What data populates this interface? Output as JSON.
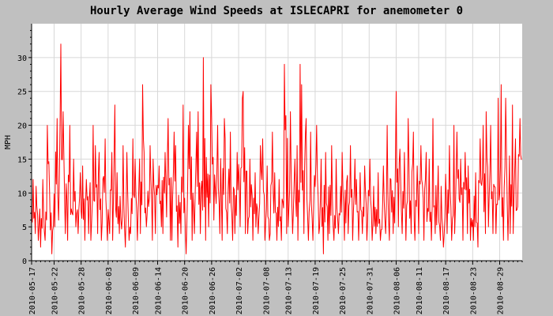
{
  "chart_data": {
    "type": "line",
    "title": "Hourly Average Wind Speeds at ISLECAPRI for anemometer 0",
    "xlabel": "",
    "ylabel": "MPH",
    "ylim": [
      0,
      35
    ],
    "yticks": [
      0,
      5,
      10,
      15,
      20,
      25,
      30
    ],
    "xlim": [
      "2010-05-17",
      "2010-09-03"
    ],
    "xticks": [
      "2010-05-17",
      "2010-05-22",
      "2010-05-28",
      "2010-06-03",
      "2010-06-09",
      "2010-06-14",
      "2010-06-20",
      "2010-06-26",
      "2010-07-02",
      "2010-07-08",
      "2010-07-13",
      "2010-07-19",
      "2010-07-25",
      "2010-07-31",
      "2010-08-06",
      "2010-08-11",
      "2010-08-17",
      "2010-08-23",
      "2010-08-29"
    ],
    "grid": true,
    "colors": {
      "line": "#ff0000",
      "background": "#c0c0c0",
      "plot": "#ffffff",
      "grid": "#d8d8d8"
    },
    "series": [
      {
        "name": "",
        "x": [
          "2010-05-17",
          "2010-05-18",
          "2010-05-19",
          "2010-05-20",
          "2010-05-21",
          "2010-05-22",
          "2010-05-23",
          "2010-05-24",
          "2010-05-25",
          "2010-05-26",
          "2010-05-27",
          "2010-05-28",
          "2010-05-29",
          "2010-05-30",
          "2010-05-31",
          "2010-06-01",
          "2010-06-02",
          "2010-06-03",
          "2010-06-04",
          "2010-06-05",
          "2010-06-06",
          "2010-06-07",
          "2010-06-08",
          "2010-06-09",
          "2010-06-10",
          "2010-06-11",
          "2010-06-12",
          "2010-06-13",
          "2010-06-14",
          "2010-06-15",
          "2010-06-16",
          "2010-06-17",
          "2010-06-18",
          "2010-06-19",
          "2010-06-20",
          "2010-06-21",
          "2010-06-22",
          "2010-06-23",
          "2010-06-24",
          "2010-06-25",
          "2010-06-26",
          "2010-06-27",
          "2010-06-28",
          "2010-06-29",
          "2010-06-30",
          "2010-07-01",
          "2010-07-02",
          "2010-07-03",
          "2010-07-04",
          "2010-07-05",
          "2010-07-06",
          "2010-07-07",
          "2010-07-08",
          "2010-07-09",
          "2010-07-10",
          "2010-07-11",
          "2010-07-12",
          "2010-07-13",
          "2010-07-14",
          "2010-07-15",
          "2010-07-16",
          "2010-07-17",
          "2010-07-18",
          "2010-07-19",
          "2010-07-20",
          "2010-07-21",
          "2010-07-22",
          "2010-07-23",
          "2010-07-24",
          "2010-07-25",
          "2010-07-26",
          "2010-07-27",
          "2010-07-28",
          "2010-07-29",
          "2010-07-30",
          "2010-07-31",
          "2010-08-01",
          "2010-08-02",
          "2010-08-03",
          "2010-08-04",
          "2010-08-05",
          "2010-08-06",
          "2010-08-07",
          "2010-08-08",
          "2010-08-09",
          "2010-08-10",
          "2010-08-11",
          "2010-08-12",
          "2010-08-13",
          "2010-08-14",
          "2010-08-15",
          "2010-08-16",
          "2010-08-17",
          "2010-08-18",
          "2010-08-19",
          "2010-08-20",
          "2010-08-21",
          "2010-08-22",
          "2010-08-23",
          "2010-08-24",
          "2010-08-25",
          "2010-08-26",
          "2010-08-27",
          "2010-08-28",
          "2010-08-29",
          "2010-08-30",
          "2010-08-31",
          "2010-09-01",
          "2010-09-02"
        ],
        "min": [
          4,
          3,
          2,
          3,
          1,
          5,
          6,
          4,
          3,
          5,
          4,
          3,
          4,
          3,
          4,
          3,
          3,
          4,
          3,
          4,
          2,
          3,
          4,
          3,
          4,
          5,
          3,
          4,
          5,
          4,
          3,
          3,
          2,
          4,
          1,
          3,
          4,
          4,
          3,
          5,
          6,
          4,
          3,
          4,
          3,
          4,
          5,
          4,
          4,
          3,
          4,
          3,
          3,
          4,
          3,
          3,
          4,
          5,
          4,
          3,
          4,
          3,
          3,
          4,
          1,
          3,
          4,
          3,
          4,
          3,
          4,
          3,
          3,
          4,
          3,
          3,
          4,
          3,
          4,
          3,
          4,
          5,
          4,
          3,
          4,
          3,
          4,
          3,
          3,
          4,
          3,
          2,
          4,
          3,
          4,
          3,
          4,
          3,
          3,
          2,
          4,
          5,
          4,
          4,
          3,
          3,
          4,
          4,
          8
        ],
        "max": [
          12,
          11,
          12,
          20,
          10,
          21,
          32,
          22,
          20,
          15,
          13,
          14,
          12,
          20,
          17,
          16,
          18,
          16,
          23,
          13,
          17,
          16,
          18,
          15,
          26,
          16,
          17,
          15,
          14,
          16,
          21,
          19,
          17,
          23,
          20,
          22,
          19,
          22,
          30,
          26,
          21,
          20,
          21,
          18,
          19,
          16,
          24,
          25,
          15,
          13,
          17,
          18,
          14,
          19,
          13,
          12,
          29,
          22,
          15,
          29,
          26,
          21,
          19,
          20,
          15,
          16,
          17,
          15,
          11,
          16,
          17,
          15,
          12,
          13,
          14,
          15,
          11,
          13,
          14,
          20,
          14,
          25,
          16,
          21,
          19,
          14,
          17,
          16,
          15,
          21,
          14,
          11,
          17,
          20,
          19,
          15,
          16,
          14,
          13,
          18,
          20,
          22,
          20,
          24,
          26,
          24,
          23,
          18,
          21
        ]
      }
    ]
  }
}
